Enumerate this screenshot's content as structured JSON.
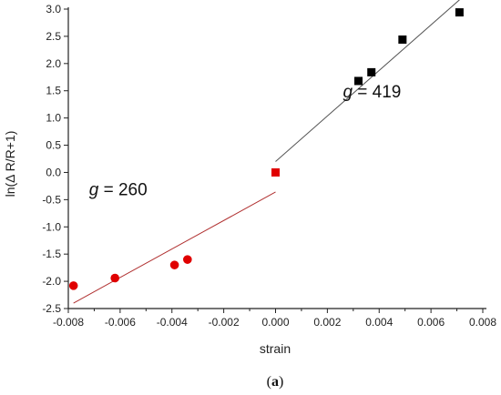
{
  "chart_data": {
    "type": "scatter",
    "xlabel": "strain",
    "ylabel": "ln(Δ R/R+1)",
    "xlim": [
      -0.008,
      0.008
    ],
    "ylim": [
      -2.5,
      3.0
    ],
    "x_ticks": [
      "-0.008",
      "-0.006",
      "-0.004",
      "-0.002",
      "0.000",
      "0.002",
      "0.004",
      "0.006",
      "0.008"
    ],
    "y_ticks": [
      "-2.5",
      "-2.0",
      "-1.5",
      "-1.0",
      "-0.5",
      "0.0",
      "0.5",
      "1.0",
      "1.5",
      "2.0",
      "2.5",
      "3.0"
    ],
    "grid": false,
    "series": [
      {
        "marker": "circle",
        "color": "#e00000",
        "points": [
          [
            -0.0078,
            -2.08
          ],
          [
            -0.0062,
            -1.94
          ],
          [
            -0.0039,
            -1.7
          ],
          [
            -0.0034,
            -1.6
          ]
        ]
      },
      {
        "marker": "square",
        "color": "#e00000",
        "points": [
          [
            0.0,
            0.0
          ]
        ]
      },
      {
        "marker": "square",
        "color": "#000000",
        "points": [
          [
            0.0032,
            1.68
          ],
          [
            0.0037,
            1.84
          ],
          [
            0.0049,
            2.44
          ],
          [
            0.0071,
            2.94
          ]
        ]
      }
    ],
    "fit_lines": [
      {
        "color": "#b03030",
        "from": [
          -0.0078,
          -2.4
        ],
        "to": [
          0.0,
          -0.36
        ]
      },
      {
        "color": "#555555",
        "from": [
          0.0,
          0.2
        ],
        "to": [
          0.0071,
          3.17
        ]
      }
    ],
    "annotations": [
      {
        "var": "g",
        "text": " = 260",
        "x": -0.0072,
        "y": -0.42
      },
      {
        "var": "g",
        "text": " = 419",
        "x": 0.0026,
        "y": 1.38
      }
    ]
  },
  "caption": {
    "open": "(",
    "label": "a",
    "close": ")"
  }
}
